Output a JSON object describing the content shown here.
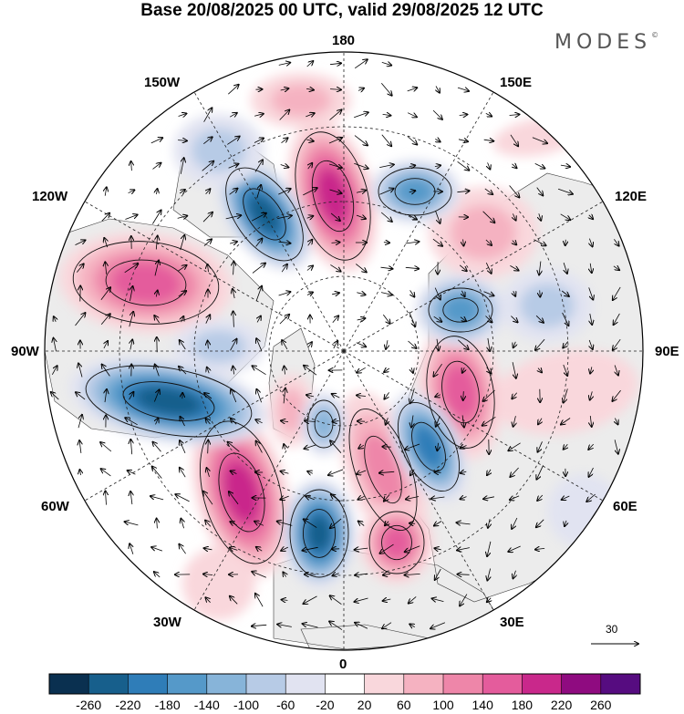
{
  "title": "Base 20/08/2025 00 UTC, valid 29/08/2025 12 UTC",
  "brand": "MODES",
  "brand_mark": "©",
  "longitude_labels": {
    "top": "180",
    "bottom": "0",
    "left": "90W",
    "right": "90E",
    "upper_left": "150W",
    "upper_right": "150E",
    "mid_upper_left": "120W",
    "mid_upper_right": "120E",
    "lower_left": "60W",
    "lower_right": "60E",
    "bottom_left": "30W",
    "bottom_right": "30E"
  },
  "vector_reference": "30",
  "colorbar": {
    "tick_labels": [
      "-260",
      "-220",
      "-180",
      "-140",
      "-100",
      "-60",
      "-20",
      "20",
      "60",
      "100",
      "140",
      "180",
      "220",
      "260"
    ],
    "colors": [
      "#0a3050",
      "#175f8c",
      "#2f7db8",
      "#5599c9",
      "#87b4d9",
      "#b7cbe6",
      "#e1e3f1",
      "#ffffff",
      "#f9d7dc",
      "#f5b2c1",
      "#ee86a9",
      "#e45c9c",
      "#c9288b",
      "#8f0b80",
      "#560c80"
    ]
  },
  "map_colors": {
    "ocean": "#ffffff",
    "land_bg": "#ececec",
    "coast": "#3a3a3a",
    "grid": "#222222",
    "contour": "#111111"
  }
}
